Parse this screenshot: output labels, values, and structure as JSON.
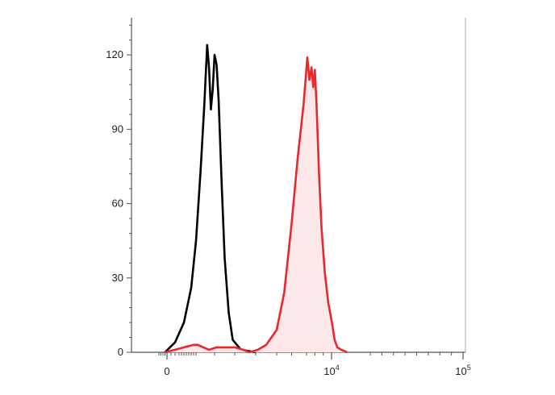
{
  "chart_data": {
    "type": "area",
    "title": "",
    "xlabel": "",
    "ylabel": "",
    "x_scale": "biexponential",
    "ylim": [
      0,
      135
    ],
    "grid": false,
    "legend": "none",
    "y_ticks": [
      {
        "value": 0,
        "label": "0"
      },
      {
        "value": 30,
        "label": "30"
      },
      {
        "value": 60,
        "label": "60"
      },
      {
        "value": 90,
        "label": "90"
      },
      {
        "value": 120,
        "label": "120"
      }
    ],
    "x_ticks": [
      {
        "value": 0,
        "label": "0",
        "exp": ""
      },
      {
        "value": 10000,
        "label": "10",
        "exp": "4"
      },
      {
        "value": 100000,
        "label": "10",
        "exp": "5"
      }
    ],
    "series": [
      {
        "color": "#000000",
        "fill": "none",
        "points": [
          [
            -100,
            0
          ],
          [
            200,
            4
          ],
          [
            500,
            12
          ],
          [
            800,
            26
          ],
          [
            1000,
            45
          ],
          [
            1250,
            74
          ],
          [
            1450,
            100
          ],
          [
            1600,
            124
          ],
          [
            1700,
            115
          ],
          [
            1800,
            98
          ],
          [
            1900,
            106
          ],
          [
            2000,
            120
          ],
          [
            2100,
            116
          ],
          [
            2200,
            102
          ],
          [
            2350,
            68
          ],
          [
            2500,
            38
          ],
          [
            2700,
            16
          ],
          [
            2900,
            5
          ],
          [
            3300,
            1
          ],
          [
            4000,
            0
          ]
        ]
      },
      {
        "color": "#e8282d",
        "fill": "#fce8e8",
        "points": [
          [
            -100,
            0
          ],
          [
            200,
            1
          ],
          [
            500,
            2
          ],
          [
            900,
            3
          ],
          [
            1100,
            3
          ],
          [
            1400,
            2
          ],
          [
            1700,
            1
          ],
          [
            2100,
            2
          ],
          [
            2500,
            2
          ],
          [
            3000,
            2
          ],
          [
            3400,
            1
          ],
          [
            3700,
            0
          ],
          [
            4100,
            1
          ],
          [
            4500,
            3
          ],
          [
            5000,
            9
          ],
          [
            5500,
            24
          ],
          [
            6000,
            52
          ],
          [
            6400,
            78
          ],
          [
            6800,
            100
          ],
          [
            7100,
            119
          ],
          [
            7350,
            110
          ],
          [
            7600,
            115
          ],
          [
            7800,
            107
          ],
          [
            8000,
            114
          ],
          [
            8200,
            100
          ],
          [
            8500,
            72
          ],
          [
            8800,
            50
          ],
          [
            9200,
            32
          ],
          [
            9600,
            20
          ],
          [
            10100,
            12
          ],
          [
            10800,
            5
          ],
          [
            11500,
            2
          ],
          [
            12500,
            1
          ],
          [
            14000,
            0
          ]
        ]
      }
    ]
  }
}
